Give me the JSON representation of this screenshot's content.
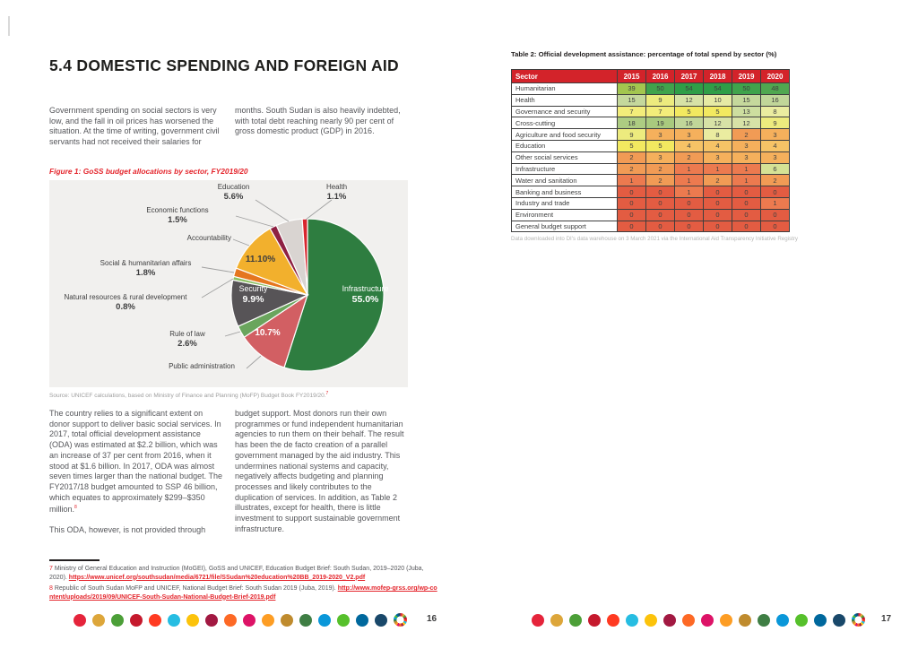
{
  "page_left": {
    "title": "5.4 DOMESTIC SPENDING AND FOREIGN AID",
    "intro_col1": "Government spending on social sectors is very low, and the fall in oil prices has worsened the situation. At the time of writing, government civil servants had not received their salaries for",
    "intro_col2": "months. South Sudan is also heavily indebted, with total debt reaching nearly 90 per cent of gross domestic product (GDP) in 2016.",
    "figure_caption": "Figure 1: GoSS budget allocations by sector, FY2019/20",
    "source_text": "Source: UNICEF calculations, based on Ministry of Finance and Planning (MoFP) Budget Book FY2019/20.",
    "source_footnote_ref": "7",
    "body_col1_p1": "The country relies to a significant extent on donor support to deliver basic social services. In 2017, total official development assistance (ODA) was estimated at $2.2 billion, which was an increase of 37 per cent from 2016, when it stood at $1.6 billion. In 2017, ODA was almost seven times larger than the national budget. The FY2017/18 budget amounted to SSP 46 billion, which equates to approximately $299–$350 million.",
    "body_col1_footnote_ref": "8",
    "body_col1_p2": "This ODA, however, is not provided through",
    "body_col2": "budget support. Most donors run their own programmes or fund independent humanitarian agencies to run them on their behalf. The result has been the de facto creation of a parallel government managed by the aid industry. This undermines national systems and capacity, negatively affects budgeting and planning processes and likely contributes to the duplication of services. In addition, as Table 2 illustrates, except for health, there is little investment to support sustainable government infrastructure.",
    "footnotes": [
      {
        "num": "7",
        "text": " Ministry of General Education and Instruction (MoGEI), GoSS and UNICEF, Education Budget Brief: South Sudan, 2019–2020 (Juba, 2020). ",
        "link": "https://www.unicef.org/southsudan/media/6721/file/SSudan%20education%20BB_2019-2020_V2.pdf"
      },
      {
        "num": "8",
        "text": " Republic of South Sudan MoFP and UNICEF, National Budget Brief: South Sudan 2019 (Juba, 2019). ",
        "link": "http://www.mofep-grss.org/wp-content/uploads/2019/09/UNICEF-South-Sudan-National-Budget-Brief-2019.pdf"
      }
    ],
    "page_number": "16"
  },
  "chart_data": {
    "type": "pie",
    "title": "Figure 1: GoSS budget allocations by sector, FY2019/20",
    "source": "Source: UNICEF calculations, based on Ministry of Finance and Planning (MoFP) Budget Book FY2019/20.",
    "start_angle_deg_clockwise_from_top": 0,
    "slices": [
      {
        "label": "Infrastructure",
        "value": 55.0,
        "pct_label": "55.0%",
        "color": "#2e7d40"
      },
      {
        "label": "Public administration",
        "value": 10.7,
        "pct_label": "10.7%",
        "color": "#d25f63"
      },
      {
        "label": "Rule of law",
        "value": 2.6,
        "pct_label": "2.6%",
        "color": "#6aa55d"
      },
      {
        "label": "Security",
        "value": 9.9,
        "pct_label": "9.9%",
        "color": "#575457"
      },
      {
        "label": "Natural resources & rural development",
        "value": 0.8,
        "pct_label": "0.8%",
        "color": "#8cc063"
      },
      {
        "label": "Social & humanitarian affairs",
        "value": 1.8,
        "pct_label": "1.8%",
        "color": "#e5761f"
      },
      {
        "label": "Accountability",
        "value": 11.1,
        "pct_label": "11.10%",
        "color": "#f2b02d"
      },
      {
        "label": "Economic functions",
        "value": 1.5,
        "pct_label": "1.5%",
        "color": "#8e2042"
      },
      {
        "label": "Education",
        "value": 5.6,
        "pct_label": "5.6%",
        "color": "#d9d4d1"
      },
      {
        "label": "Health",
        "value": 1.1,
        "pct_label": "1.1%",
        "color": "#d8262e"
      }
    ]
  },
  "page_right": {
    "table_title": "Table 2: Official development assistance: percentage of total spend by sector (%)",
    "table": {
      "header": [
        "Sector",
        "2015",
        "2016",
        "2017",
        "2018",
        "2019",
        "2020"
      ],
      "rows": [
        {
          "sector": "Humanitarian",
          "values": [
            39,
            50,
            54,
            54,
            50,
            48
          ]
        },
        {
          "sector": "Health",
          "values": [
            15,
            9,
            12,
            10,
            15,
            16
          ]
        },
        {
          "sector": "Governance and security",
          "values": [
            7,
            7,
            5,
            5,
            13,
            8
          ]
        },
        {
          "sector": "Cross-cutting",
          "values": [
            18,
            19,
            16,
            12,
            12,
            9
          ]
        },
        {
          "sector": "Agriculture and food security",
          "values": [
            9,
            3,
            3,
            8,
            2,
            3
          ]
        },
        {
          "sector": "Education",
          "values": [
            5,
            5,
            4,
            4,
            3,
            4
          ]
        },
        {
          "sector": "Other social services",
          "values": [
            2,
            3,
            2,
            3,
            3,
            3
          ]
        },
        {
          "sector": "Infrastructure",
          "values": [
            2,
            2,
            1,
            1,
            1,
            6
          ]
        },
        {
          "sector": "Water and sanitation",
          "values": [
            1,
            2,
            1,
            2,
            1,
            2
          ]
        },
        {
          "sector": "Banking and business",
          "values": [
            0,
            0,
            1,
            0,
            0,
            0
          ]
        },
        {
          "sector": "Industry and trade",
          "values": [
            0,
            0,
            0,
            0,
            0,
            1
          ]
        },
        {
          "sector": "Environment",
          "values": [
            0,
            0,
            0,
            0,
            0,
            0
          ]
        },
        {
          "sector": "General budget support",
          "values": [
            0,
            0,
            0,
            0,
            0,
            0
          ]
        }
      ]
    },
    "table_note": "Data downloaded into DI's data warehouse on 3 March 2021 via the International Aid Transparency Initiative Registry",
    "page_number": "17"
  },
  "heat_scale": {
    "0": "#e35c42",
    "1": "#ec7a4f",
    "2": "#f19b55",
    "3": "#f5b05c",
    "4": "#f6c366",
    "5": "#f2e960",
    "6": "#d5e295",
    "7": "#f3ed7a",
    "8": "#eaeca0",
    "9": "#edeb7e",
    "10": "#e6eaa4",
    "12": "#d7e2a6",
    "13": "#cdde9f",
    "15": "#c5d89c",
    "16": "#c1d699",
    "18": "#adcc82",
    "19": "#a9ca7e",
    "39": "#a3c64f",
    "48": "#50a750",
    "50": "#40a34c",
    "54": "#2f9e47"
  },
  "footer": {
    "sdg_colors": [
      "#e5243b",
      "#dda63a",
      "#4c9f38",
      "#c5192d",
      "#ff3a21",
      "#26bde2",
      "#fcc30b",
      "#a21942",
      "#fd6925",
      "#dd1367",
      "#fd9d24",
      "#bf8b2e",
      "#3f7e44",
      "#0a97d9",
      "#56c02b",
      "#00689d",
      "#19486a"
    ],
    "wheel_icon": "sdg-wheel"
  },
  "colors": {
    "accent_red": "#e4252c",
    "table_header_red": "#d3232a",
    "chart_panel_bg": "#f1f0ee",
    "title_text": "#1e1e1c",
    "body_text": "#55565a"
  }
}
